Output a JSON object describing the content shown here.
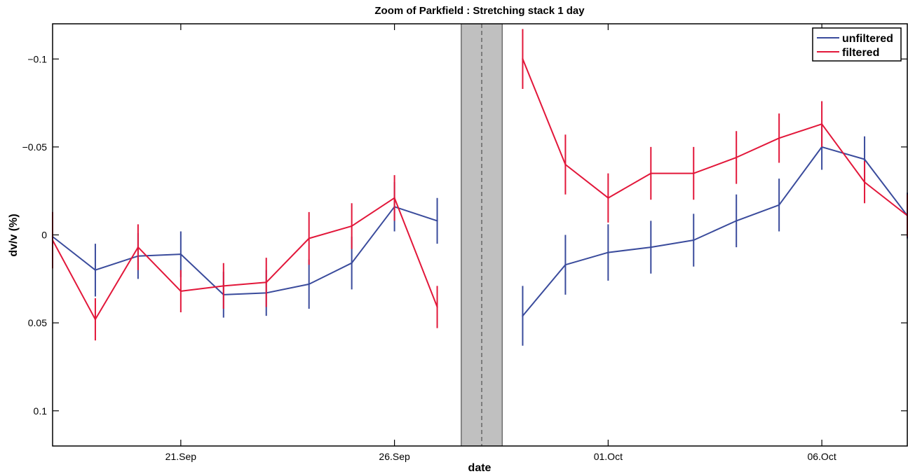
{
  "chart_data": {
    "type": "line",
    "title": "Zoom of Parkfield : Stretching stack 1 day",
    "xlabel": "date",
    "ylabel": "dv/v (%)",
    "y_reversed": true,
    "ylim": [
      0.12,
      -0.12
    ],
    "xlim": [
      "2004-09-18",
      "2004-10-08"
    ],
    "yticks": [
      -0.1,
      -0.05,
      0,
      0.05,
      0.1
    ],
    "ytick_labels": [
      "−0.1",
      "−0.05",
      "0",
      "0.05",
      "0.1"
    ],
    "xticks": [
      "2004-09-21",
      "2004-09-26",
      "2004-10-01",
      "2004-10-06"
    ],
    "xtick_labels": [
      "21.Sep",
      "26.Sep",
      "01.Oct",
      "06.Oct"
    ],
    "gap": {
      "start": "2004-09-27T13:30",
      "end": "2004-09-28T12:30",
      "event": "2004-09-28T01:00",
      "color": "#c0c0c0"
    },
    "grid": false,
    "legend_position": "top-right",
    "series": [
      {
        "name": "unfiltered",
        "color": "#3a4b9c",
        "segments": [
          {
            "x": [
              "2004-09-18",
              "2004-09-19",
              "2004-09-20",
              "2004-09-21",
              "2004-09-22",
              "2004-09-23",
              "2004-09-24",
              "2004-09-25",
              "2004-09-26",
              "2004-09-27"
            ],
            "y": [
              0.001,
              0.02,
              0.012,
              0.011,
              0.034,
              0.033,
              0.028,
              0.016,
              -0.016,
              -0.008
            ],
            "err": [
              0.013,
              0.015,
              0.013,
              0.013,
              0.013,
              0.013,
              0.014,
              0.015,
              0.014,
              0.013
            ]
          },
          {
            "x": [
              "2004-09-29",
              "2004-09-30",
              "2004-10-01",
              "2004-10-02",
              "2004-10-03",
              "2004-10-04",
              "2004-10-05",
              "2004-10-06",
              "2004-10-07",
              "2004-10-08"
            ],
            "y": [
              0.046,
              0.017,
              0.01,
              0.007,
              0.003,
              -0.008,
              -0.017,
              -0.05,
              -0.043,
              -0.011
            ],
            "err": [
              0.017,
              0.017,
              0.016,
              0.015,
              0.015,
              0.015,
              0.015,
              0.013,
              0.013,
              0.013
            ]
          }
        ]
      },
      {
        "name": "filtered",
        "color": "#e2173a",
        "segments": [
          {
            "x": [
              "2004-09-18",
              "2004-09-19",
              "2004-09-20",
              "2004-09-21",
              "2004-09-22",
              "2004-09-23",
              "2004-09-24",
              "2004-09-25",
              "2004-09-26",
              "2004-09-27"
            ],
            "y": [
              0.003,
              0.048,
              0.007,
              0.032,
              0.029,
              0.027,
              0.002,
              -0.005,
              -0.021,
              0.041
            ],
            "err": [
              0.016,
              0.012,
              0.013,
              0.012,
              0.013,
              0.014,
              0.015,
              0.013,
              0.013,
              0.012
            ]
          },
          {
            "x": [
              "2004-09-29",
              "2004-09-30",
              "2004-10-01",
              "2004-10-02",
              "2004-10-03",
              "2004-10-04",
              "2004-10-05",
              "2004-10-06",
              "2004-10-07",
              "2004-10-08"
            ],
            "y": [
              -0.1,
              -0.04,
              -0.021,
              -0.035,
              -0.035,
              -0.044,
              -0.055,
              -0.063,
              -0.03,
              -0.011
            ],
            "err": [
              0.017,
              0.017,
              0.014,
              0.015,
              0.015,
              0.015,
              0.014,
              0.013,
              0.012,
              0.012
            ]
          }
        ]
      }
    ]
  }
}
